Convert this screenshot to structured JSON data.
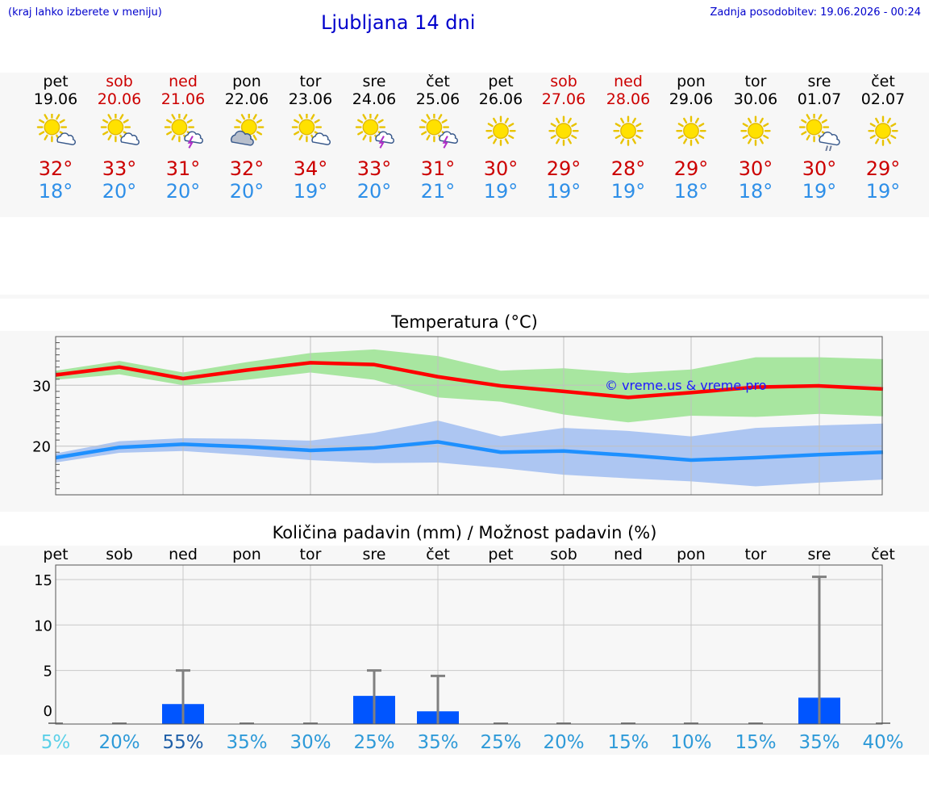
{
  "header": {
    "hint": "(kraj lahko izberete v meniju)",
    "title": "Ljubljana 14 dni",
    "updated": "Zadnja posodobitev: 19.06.2026 - 00:24"
  },
  "days": [
    {
      "name": "pet",
      "date": "19.06",
      "weekend": false,
      "icon": "sun-cloud-icon",
      "max": "32°",
      "min": "18°"
    },
    {
      "name": "sob",
      "date": "20.06",
      "weekend": true,
      "icon": "sun-cloud-icon",
      "max": "33°",
      "min": "20°"
    },
    {
      "name": "ned",
      "date": "21.06",
      "weekend": true,
      "icon": "sun-thunder-icon",
      "max": "31°",
      "min": "20°"
    },
    {
      "name": "pon",
      "date": "22.06",
      "weekend": false,
      "icon": "sun-grey-cloud-icon",
      "max": "32°",
      "min": "20°"
    },
    {
      "name": "tor",
      "date": "23.06",
      "weekend": false,
      "icon": "sun-cloud-icon",
      "max": "34°",
      "min": "19°"
    },
    {
      "name": "sre",
      "date": "24.06",
      "weekend": false,
      "icon": "sun-thunder-icon",
      "max": "33°",
      "min": "20°"
    },
    {
      "name": "čet",
      "date": "25.06",
      "weekend": false,
      "icon": "sun-thunder-icon",
      "max": "31°",
      "min": "21°"
    },
    {
      "name": "pet",
      "date": "26.06",
      "weekend": false,
      "icon": "sun-icon",
      "max": "30°",
      "min": "19°"
    },
    {
      "name": "sob",
      "date": "27.06",
      "weekend": true,
      "icon": "sun-icon",
      "max": "29°",
      "min": "19°"
    },
    {
      "name": "ned",
      "date": "28.06",
      "weekend": true,
      "icon": "sun-icon",
      "max": "28°",
      "min": "19°"
    },
    {
      "name": "pon",
      "date": "29.06",
      "weekend": false,
      "icon": "sun-icon",
      "max": "29°",
      "min": "18°"
    },
    {
      "name": "tor",
      "date": "30.06",
      "weekend": false,
      "icon": "sun-icon",
      "max": "30°",
      "min": "18°"
    },
    {
      "name": "sre",
      "date": "01.07",
      "weekend": false,
      "icon": "sun-rain-cloud-icon",
      "max": "30°",
      "min": "19°"
    },
    {
      "name": "čet",
      "date": "02.07",
      "weekend": false,
      "icon": "sun-icon",
      "max": "29°",
      "min": "19°"
    }
  ],
  "colors": {
    "max_line": "#ff0000",
    "max_band": "#a8e6a0",
    "min_line": "#1e90ff",
    "min_band": "#adc6f2",
    "precip_bar": "#0055ff",
    "whisker": "#808080",
    "weekend_text": "#cc0000",
    "title_text": "#0000cc"
  },
  "chart_data": [
    {
      "type": "line",
      "title": "Temperatura (°C)",
      "watermark": "© vreme.us & vreme.pro",
      "categories": [
        "19.06",
        "20.06",
        "21.06",
        "22.06",
        "23.06",
        "24.06",
        "25.06",
        "26.06",
        "27.06",
        "28.06",
        "29.06",
        "30.06",
        "01.07",
        "02.07"
      ],
      "ylim": [
        12,
        38
      ],
      "yticks": [
        20,
        30
      ],
      "grid": true,
      "series": [
        {
          "role": "max",
          "values": [
            31.7,
            33.0,
            31.1,
            32.5,
            33.7,
            33.4,
            31.4,
            29.9,
            29.0,
            28.0,
            28.8,
            29.7,
            29.9,
            29.4
          ],
          "band_low": [
            30.9,
            31.8,
            30.0,
            30.9,
            32.1,
            30.9,
            28.0,
            27.3,
            25.2,
            23.9,
            25.0,
            24.8,
            25.3,
            24.9
          ],
          "band_high": [
            32.4,
            34.0,
            32.1,
            33.8,
            35.3,
            35.9,
            34.8,
            32.4,
            32.8,
            32.0,
            32.6,
            34.6,
            34.6,
            34.3
          ]
        },
        {
          "role": "min",
          "values": [
            18.1,
            19.8,
            20.3,
            19.9,
            19.3,
            19.7,
            20.7,
            19.0,
            19.2,
            18.5,
            17.7,
            18.1,
            18.6,
            19.0
          ],
          "band_low": [
            17.3,
            18.9,
            19.2,
            18.5,
            17.7,
            17.2,
            17.3,
            16.4,
            15.3,
            14.7,
            14.2,
            13.4,
            14.0,
            14.5
          ],
          "band_high": [
            18.8,
            20.8,
            21.3,
            21.2,
            20.9,
            22.2,
            24.2,
            21.6,
            23.0,
            22.5,
            21.6,
            23.0,
            23.4,
            23.7
          ]
        }
      ]
    },
    {
      "type": "bar",
      "title": "Količina padavin (mm) / Možnost padavin (%)",
      "categories": [
        "pet",
        "sob",
        "ned",
        "pon",
        "tor",
        "sre",
        "čet",
        "pet",
        "sob",
        "ned",
        "pon",
        "tor",
        "sre",
        "čet"
      ],
      "ylim": [
        -0.9,
        16.6
      ],
      "yticks": [
        0,
        5,
        10,
        15
      ],
      "grid": true,
      "values": [
        0,
        0,
        1.3,
        0,
        0,
        2.2,
        0.5,
        0,
        0,
        0,
        0,
        0,
        2.0,
        0
      ],
      "whisker_high": [
        0,
        0,
        5.0,
        0,
        0,
        5.0,
        4.4,
        0,
        0,
        0,
        0,
        0,
        15.3,
        0
      ],
      "probability": [
        "5%",
        "20%",
        "55%",
        "35%",
        "30%",
        "25%",
        "35%",
        "25%",
        "20%",
        "15%",
        "10%",
        "15%",
        "35%",
        "40%"
      ],
      "probability_colors": [
        "#5bd0e8",
        "#2e9ad8",
        "#1f5fa8",
        "#2e9ad8",
        "#2e9ad8",
        "#2e9ad8",
        "#2e9ad8",
        "#2e9ad8",
        "#2e9ad8",
        "#2e9ad8",
        "#2e9ad8",
        "#2e9ad8",
        "#2e9ad8",
        "#2e9ad8"
      ]
    }
  ]
}
